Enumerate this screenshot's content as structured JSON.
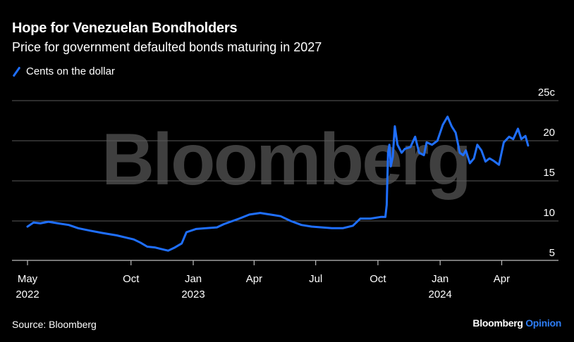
{
  "title": "Hope for Venezuelan Bondholders",
  "subtitle": "Price for government defaulted bonds maturing in 2027",
  "legend": {
    "label": "Cents on the dollar"
  },
  "source": "Source: Bloomberg",
  "brand": {
    "name": "Bloomberg",
    "section": "Opinion"
  },
  "watermark": "Bloomberg",
  "colors": {
    "line": "#1f6fff",
    "background": "#000000",
    "grid": "#5a5a5a",
    "brand_accent": "#2d7df5"
  },
  "chart_data": {
    "type": "line",
    "title": "Hope for Venezuelan Bondholders",
    "subtitle": "Price for government defaulted bonds maturing in 2027",
    "ylabel": "",
    "xlabel": "",
    "ylim": [
      3,
      25
    ],
    "xlim": [
      "2022-05-01",
      "2024-06-01"
    ],
    "y_ticks": [
      {
        "value": 25,
        "label": "25c"
      },
      {
        "value": 20,
        "label": "20"
      },
      {
        "value": 15,
        "label": "15"
      },
      {
        "value": 10,
        "label": "10"
      },
      {
        "value": 5,
        "label": "5"
      }
    ],
    "x_ticks": [
      {
        "date": "2022-05-01",
        "label": "May",
        "year": "2022"
      },
      {
        "date": "2022-10-01",
        "label": "Oct",
        "year": ""
      },
      {
        "date": "2023-01-01",
        "label": "Jan",
        "year": "2023"
      },
      {
        "date": "2023-04-01",
        "label": "Apr",
        "year": ""
      },
      {
        "date": "2023-07-01",
        "label": "Jul",
        "year": ""
      },
      {
        "date": "2023-10-01",
        "label": "Oct",
        "year": ""
      },
      {
        "date": "2024-01-01",
        "label": "Jan",
        "year": "2024"
      },
      {
        "date": "2024-04-01",
        "label": "Apr",
        "year": ""
      }
    ],
    "grid": true,
    "series": [
      {
        "name": "Cents on the dollar",
        "points": [
          [
            "2022-05-01",
            9.3
          ],
          [
            "2022-05-10",
            9.8
          ],
          [
            "2022-05-20",
            9.7
          ],
          [
            "2022-06-01",
            9.9
          ],
          [
            "2022-06-15",
            9.7
          ],
          [
            "2022-07-01",
            9.5
          ],
          [
            "2022-07-15",
            9.1
          ],
          [
            "2022-08-01",
            8.8
          ],
          [
            "2022-08-20",
            8.5
          ],
          [
            "2022-09-10",
            8.2
          ],
          [
            "2022-09-25",
            7.9
          ],
          [
            "2022-10-05",
            7.7
          ],
          [
            "2022-10-15",
            7.3
          ],
          [
            "2022-10-25",
            6.8
          ],
          [
            "2022-11-05",
            6.7
          ],
          [
            "2022-11-15",
            6.5
          ],
          [
            "2022-11-25",
            6.3
          ],
          [
            "2022-12-05",
            6.7
          ],
          [
            "2022-12-15",
            7.2
          ],
          [
            "2022-12-22",
            8.6
          ],
          [
            "2023-01-05",
            9.0
          ],
          [
            "2023-01-20",
            9.1
          ],
          [
            "2023-02-05",
            9.2
          ],
          [
            "2023-02-15",
            9.6
          ],
          [
            "2023-02-25",
            9.9
          ],
          [
            "2023-03-10",
            10.3
          ],
          [
            "2023-03-25",
            10.8
          ],
          [
            "2023-04-10",
            11.0
          ],
          [
            "2023-04-25",
            10.8
          ],
          [
            "2023-05-10",
            10.6
          ],
          [
            "2023-05-25",
            10.0
          ],
          [
            "2023-06-10",
            9.5
          ],
          [
            "2023-06-25",
            9.3
          ],
          [
            "2023-07-10",
            9.2
          ],
          [
            "2023-07-25",
            9.1
          ],
          [
            "2023-08-10",
            9.1
          ],
          [
            "2023-08-25",
            9.4
          ],
          [
            "2023-09-05",
            10.3
          ],
          [
            "2023-09-20",
            10.3
          ],
          [
            "2023-10-05",
            10.5
          ],
          [
            "2023-10-12",
            10.5
          ],
          [
            "2023-10-14",
            12.0
          ],
          [
            "2023-10-16",
            18.5
          ],
          [
            "2023-10-18",
            19.5
          ],
          [
            "2023-10-20",
            16.8
          ],
          [
            "2023-10-23",
            18.0
          ],
          [
            "2023-10-26",
            21.8
          ],
          [
            "2023-10-30",
            19.5
          ],
          [
            "2023-11-05",
            18.5
          ],
          [
            "2023-11-10",
            19.0
          ],
          [
            "2023-11-18",
            19.2
          ],
          [
            "2023-11-25",
            20.5
          ],
          [
            "2023-12-01",
            18.5
          ],
          [
            "2023-12-08",
            18.2
          ],
          [
            "2023-12-12",
            19.8
          ],
          [
            "2023-12-20",
            19.5
          ],
          [
            "2023-12-28",
            20.0
          ],
          [
            "2024-01-05",
            22.0
          ],
          [
            "2024-01-12",
            23.0
          ],
          [
            "2024-01-18",
            21.8
          ],
          [
            "2024-01-24",
            21.0
          ],
          [
            "2024-01-30",
            18.5
          ],
          [
            "2024-02-04",
            18.2
          ],
          [
            "2024-02-08",
            18.8
          ],
          [
            "2024-02-14",
            17.2
          ],
          [
            "2024-02-20",
            17.8
          ],
          [
            "2024-02-25",
            19.5
          ],
          [
            "2024-03-02",
            18.8
          ],
          [
            "2024-03-08",
            17.4
          ],
          [
            "2024-03-14",
            17.8
          ],
          [
            "2024-03-20",
            17.5
          ],
          [
            "2024-03-28",
            17.0
          ],
          [
            "2024-04-04",
            19.8
          ],
          [
            "2024-04-12",
            20.5
          ],
          [
            "2024-04-18",
            20.2
          ],
          [
            "2024-04-25",
            21.5
          ],
          [
            "2024-04-30",
            20.2
          ],
          [
            "2024-05-06",
            20.6
          ],
          [
            "2024-05-10",
            19.4
          ]
        ]
      }
    ]
  }
}
